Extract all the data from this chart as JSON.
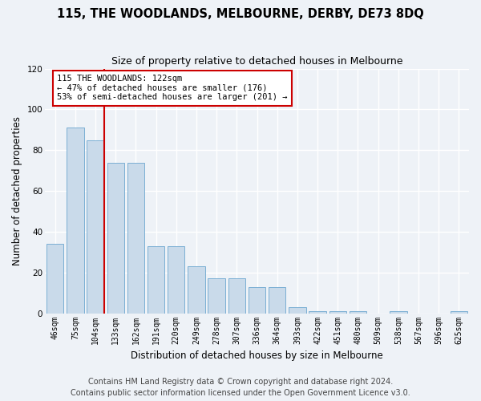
{
  "title": "115, THE WOODLANDS, MELBOURNE, DERBY, DE73 8DQ",
  "subtitle": "Size of property relative to detached houses in Melbourne",
  "xlabel": "Distribution of detached houses by size in Melbourne",
  "ylabel": "Number of detached properties",
  "bar_color": "#c9daea",
  "bar_edge_color": "#7bafd4",
  "categories": [
    "46sqm",
    "75sqm",
    "104sqm",
    "133sqm",
    "162sqm",
    "191sqm",
    "220sqm",
    "249sqm",
    "278sqm",
    "307sqm",
    "336sqm",
    "364sqm",
    "393sqm",
    "422sqm",
    "451sqm",
    "480sqm",
    "509sqm",
    "538sqm",
    "567sqm",
    "596sqm",
    "625sqm"
  ],
  "values": [
    34,
    91,
    85,
    74,
    74,
    33,
    33,
    23,
    17,
    17,
    13,
    13,
    3,
    1,
    1,
    1,
    0,
    1,
    0,
    0,
    1
  ],
  "ylim": [
    0,
    120
  ],
  "yticks": [
    0,
    20,
    40,
    60,
    80,
    100,
    120
  ],
  "annotation_text": "115 THE WOODLANDS: 122sqm\n← 47% of detached houses are smaller (176)\n53% of semi-detached houses are larger (201) →",
  "vline_bar_index": 2,
  "annotation_box_color": "#ffffff",
  "annotation_box_edge_color": "#cc0000",
  "footer_line1": "Contains HM Land Registry data © Crown copyright and database right 2024.",
  "footer_line2": "Contains public sector information licensed under the Open Government Licence v3.0.",
  "background_color": "#eef2f7",
  "plot_background_color": "#eef2f7",
  "grid_color": "#ffffff",
  "title_fontsize": 10.5,
  "subtitle_fontsize": 9,
  "axis_label_fontsize": 8.5,
  "tick_fontsize": 7,
  "annotation_fontsize": 7.5,
  "footer_fontsize": 7
}
